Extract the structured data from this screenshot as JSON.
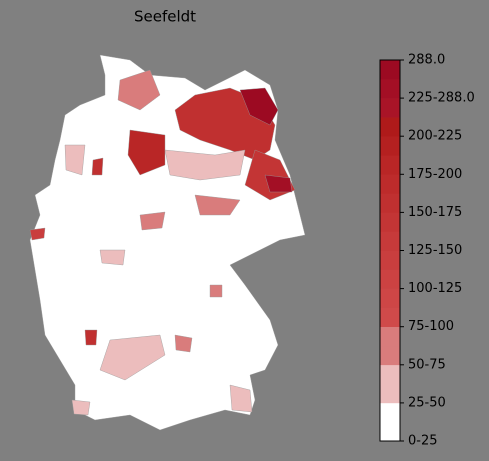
{
  "title": "Seefeldt",
  "colorbar": {
    "labels": [
      "288.0",
      "225-288.0",
      "200-225",
      "175-200",
      "150-175",
      "125-150",
      "100-125",
      "75-100",
      "50-75",
      "25-50",
      "0-25"
    ],
    "colors": [
      "#ffffff",
      "#ffffff",
      "#ecbdbd",
      "#ecbdbd",
      "#d97c7c",
      "#d97c7c",
      "#d04a4a",
      "#ce4646",
      "#cc4242",
      "#c93e3e",
      "#c63a3a",
      "#c33535",
      "#c03030",
      "#bd2b2b",
      "#b92626",
      "#b42020",
      "#af1a1a",
      "#a91427",
      "#a30f25",
      "#9c0a22"
    ]
  }
}
